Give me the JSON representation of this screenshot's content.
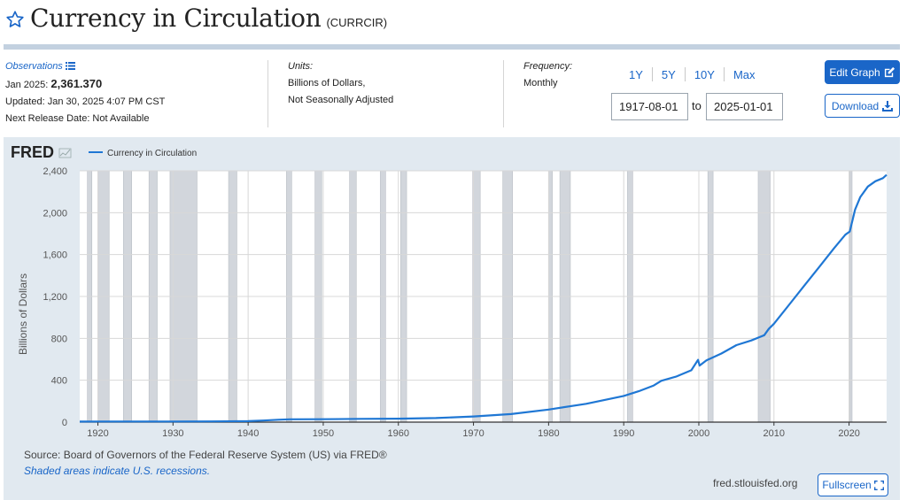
{
  "header": {
    "title": "Currency in Circulation",
    "series_id": "(CURRCIR)"
  },
  "observations": {
    "label": "Observations",
    "date": "Jan 2025:",
    "value": "2,361.370",
    "updated": "Updated: Jan 30, 2025 4:07 PM CST",
    "next_release": "Next Release Date: Not Available"
  },
  "units": {
    "label": "Units:",
    "line1": "Billions of Dollars,",
    "line2": "Not Seasonally Adjusted"
  },
  "frequency": {
    "label": "Frequency:",
    "value": "Monthly"
  },
  "ranges": [
    "1Y",
    "5Y",
    "10Y",
    "Max"
  ],
  "date_range": {
    "start": "1917-08-01",
    "to": "to",
    "end": "2025-01-01"
  },
  "buttons": {
    "edit_graph": "Edit Graph",
    "download": "Download",
    "fullscreen": "Fullscreen"
  },
  "footer": {
    "source": "Source: Board of Governors of the Federal Reserve System (US) via FRED®",
    "shaded": "Shaded areas indicate U.S. recessions.",
    "site": "fred.stlouisfed.org"
  },
  "colors": {
    "accent": "#1a66c8",
    "line": "#1f77d4",
    "recession": "#d2d6dc",
    "panel": "#e1e9f0"
  },
  "icons": {
    "star": "star-outline-icon",
    "list": "list-icon",
    "edit": "edit-icon",
    "download": "download-icon",
    "fullscreen": "fullscreen-icon"
  },
  "chart_data": {
    "type": "line",
    "brand": "FRED",
    "legend": "Currency in Circulation",
    "ylabel": "Billions of Dollars",
    "xlabel": "",
    "xlim": [
      1917.58,
      2025.0
    ],
    "ylim": [
      0,
      2400
    ],
    "yticks": [
      0,
      400,
      800,
      1200,
      1600,
      2000,
      2400
    ],
    "ytick_labels": [
      "0",
      "400",
      "800",
      "1,200",
      "1,600",
      "2,000",
      "2,400"
    ],
    "xticks": [
      1920,
      1930,
      1940,
      1950,
      1960,
      1970,
      1980,
      1990,
      2000,
      2010,
      2020
    ],
    "grid": true,
    "recessions": [
      [
        1918.6,
        1919.2
      ],
      [
        1920.0,
        1921.5
      ],
      [
        1923.4,
        1924.5
      ],
      [
        1926.8,
        1927.9
      ],
      [
        1929.6,
        1933.2
      ],
      [
        1937.4,
        1938.5
      ],
      [
        1945.1,
        1945.8
      ],
      [
        1948.9,
        1949.8
      ],
      [
        1953.5,
        1954.4
      ],
      [
        1957.6,
        1958.3
      ],
      [
        1960.3,
        1961.1
      ],
      [
        1969.9,
        1970.9
      ],
      [
        1973.9,
        1975.2
      ],
      [
        1980.0,
        1980.5
      ],
      [
        1981.5,
        1982.9
      ],
      [
        1990.5,
        1991.2
      ],
      [
        2001.2,
        2001.9
      ],
      [
        2007.9,
        2009.5
      ],
      [
        2020.1,
        2020.4
      ]
    ],
    "series": [
      {
        "name": "Currency in Circulation",
        "x": [
          1917.58,
          1920,
          1925,
          1930,
          1935,
          1940,
          1942,
          1944,
          1945.5,
          1950,
          1955,
          1960,
          1965,
          1970,
          1975,
          1980,
          1985,
          1990,
          1992,
          1994,
          1995,
          1997,
          1999,
          1999.9,
          2000.1,
          2001,
          2003,
          2005,
          2007,
          2008.7,
          2009.3,
          2010,
          2012,
          2014,
          2016,
          2018,
          2019.5,
          2020.1,
          2020.8,
          2021.5,
          2022.5,
          2023.5,
          2024.5,
          2025.0
        ],
        "y": [
          5,
          6,
          6,
          6,
          7,
          9,
          15,
          23,
          27,
          28,
          31,
          33,
          39,
          54,
          77,
          120,
          175,
          250,
          295,
          350,
          395,
          435,
          495,
          595,
          540,
          590,
          655,
          735,
          780,
          830,
          890,
          940,
          1120,
          1300,
          1480,
          1660,
          1790,
          1820,
          2030,
          2150,
          2250,
          2300,
          2330,
          2361
        ]
      }
    ]
  }
}
